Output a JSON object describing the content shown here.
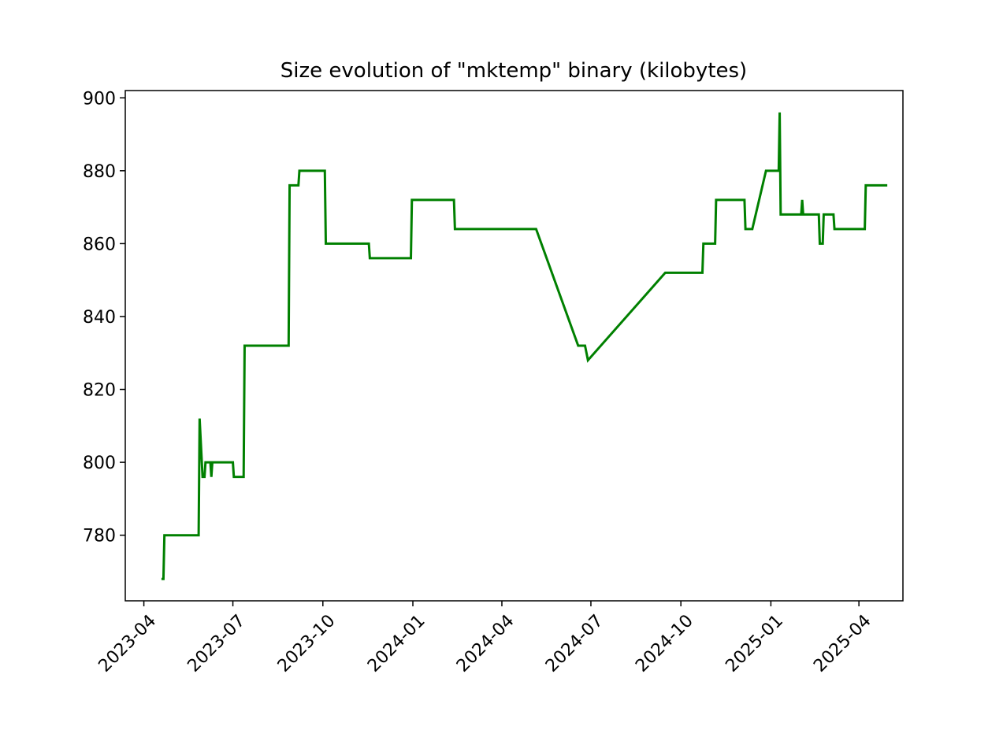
{
  "chart_data": {
    "type": "line",
    "title": "Size evolution of \"mktemp\" binary (kilobytes)",
    "xlabel": "",
    "ylabel": "",
    "grid": false,
    "x_axis": "date",
    "ylim": [
      762,
      902
    ],
    "y_ticks": [
      780,
      800,
      820,
      840,
      860,
      880,
      900
    ],
    "x_ticks": [
      "2023-04",
      "2023-07",
      "2023-10",
      "2024-01",
      "2024-04",
      "2024-07",
      "2024-10",
      "2025-01",
      "2025-04"
    ],
    "series": [
      {
        "color": "#008000",
        "points": [
          [
            "2023-04-19",
            768
          ],
          [
            "2023-04-21",
            768
          ],
          [
            "2023-04-22",
            780
          ],
          [
            "2023-05-27",
            780
          ],
          [
            "2023-05-28",
            812
          ],
          [
            "2023-05-31",
            796
          ],
          [
            "2023-06-02",
            796
          ],
          [
            "2023-06-03",
            800
          ],
          [
            "2023-06-08",
            800
          ],
          [
            "2023-06-09",
            796
          ],
          [
            "2023-06-10",
            800
          ],
          [
            "2023-07-01",
            800
          ],
          [
            "2023-07-02",
            796
          ],
          [
            "2023-07-12",
            796
          ],
          [
            "2023-07-13",
            832
          ],
          [
            "2023-08-27",
            832
          ],
          [
            "2023-08-28",
            876
          ],
          [
            "2023-09-06",
            876
          ],
          [
            "2023-09-07",
            880
          ],
          [
            "2023-10-03",
            880
          ],
          [
            "2023-10-04",
            860
          ],
          [
            "2023-11-17",
            860
          ],
          [
            "2023-11-18",
            856
          ],
          [
            "2023-12-30",
            856
          ],
          [
            "2023-12-31",
            872
          ],
          [
            "2024-02-12",
            872
          ],
          [
            "2024-02-13",
            864
          ],
          [
            "2024-05-06",
            864
          ],
          [
            "2024-06-18",
            832
          ],
          [
            "2024-06-25",
            832
          ],
          [
            "2024-06-28",
            828
          ],
          [
            "2024-09-15",
            852
          ],
          [
            "2024-10-23",
            852
          ],
          [
            "2024-10-24",
            860
          ],
          [
            "2024-11-05",
            860
          ],
          [
            "2024-11-06",
            872
          ],
          [
            "2024-12-05",
            872
          ],
          [
            "2024-12-06",
            864
          ],
          [
            "2024-12-13",
            864
          ],
          [
            "2024-12-27",
            880
          ],
          [
            "2025-01-09",
            880
          ],
          [
            "2025-01-10",
            896
          ],
          [
            "2025-01-11",
            868
          ],
          [
            "2025-02-01",
            868
          ],
          [
            "2025-02-02",
            872
          ],
          [
            "2025-02-03",
            868
          ],
          [
            "2025-02-19",
            868
          ],
          [
            "2025-02-20",
            860
          ],
          [
            "2025-02-23",
            860
          ],
          [
            "2025-02-24",
            868
          ],
          [
            "2025-03-06",
            868
          ],
          [
            "2025-03-07",
            864
          ],
          [
            "2025-04-07",
            864
          ],
          [
            "2025-04-08",
            876
          ],
          [
            "2025-04-30",
            876
          ]
        ]
      }
    ]
  }
}
